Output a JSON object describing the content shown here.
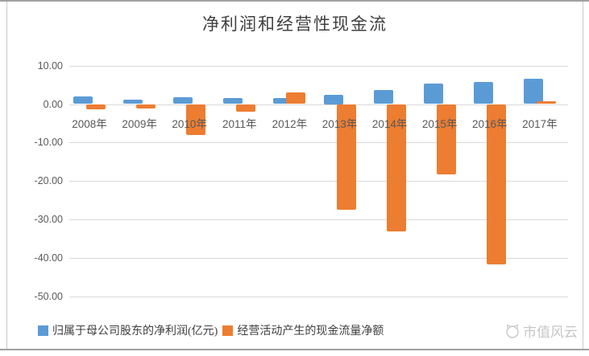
{
  "chart_data": {
    "type": "bar",
    "title": "净利润和经营性现金流",
    "categories": [
      "2008年",
      "2009年",
      "2010年",
      "2011年",
      "2012年",
      "2013年",
      "2014年",
      "2015年",
      "2016年",
      "2017年"
    ],
    "series": [
      {
        "key": "net-profit",
        "name": "归属于母公司股东的净利润(亿元)",
        "color": "#5B9BD5",
        "values": [
          1.9,
          1.1,
          1.7,
          1.5,
          1.6,
          2.4,
          3.7,
          5.3,
          5.7,
          6.5
        ]
      },
      {
        "key": "op-cashflow",
        "name": "经营活动产生的现金流量净额",
        "color": "#ED7D31",
        "values": [
          -1.4,
          -1.2,
          -8.0,
          -2.0,
          3.0,
          -27.5,
          -33.2,
          -18.3,
          -41.8,
          0.8
        ]
      }
    ],
    "ylim": [
      -50,
      10
    ],
    "yticks": [
      {
        "value": 10,
        "label": "10.00"
      },
      {
        "value": 0,
        "label": "0.00"
      },
      {
        "value": -10,
        "label": "-10.00"
      },
      {
        "value": -20,
        "label": "-20.00"
      },
      {
        "value": -30,
        "label": "-30.00"
      },
      {
        "value": -40,
        "label": "-40.00"
      },
      {
        "value": -50,
        "label": "-50.00"
      }
    ],
    "grid": true,
    "legend_position": "bottom",
    "gridline_color": "#d9d9d9",
    "axis_text_color": "#595959"
  },
  "watermark": {
    "text": "市值风云"
  }
}
